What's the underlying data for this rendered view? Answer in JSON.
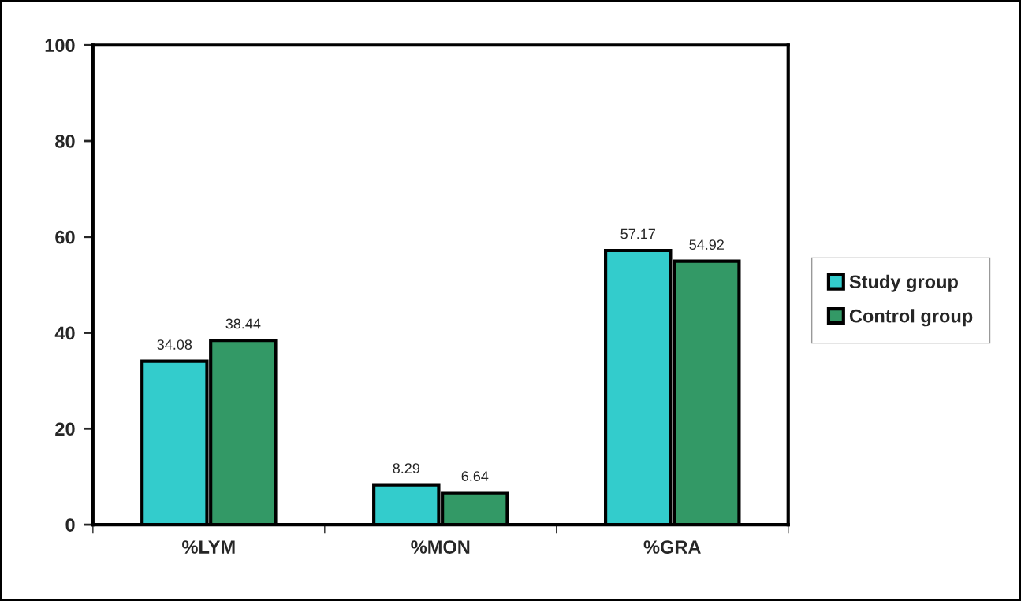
{
  "chart_data": {
    "type": "bar",
    "categories": [
      "%LYM",
      "%MON",
      "%GRA"
    ],
    "series": [
      {
        "name": "Study group",
        "color": "#33cccc",
        "values": [
          34.08,
          8.29,
          57.17
        ]
      },
      {
        "name": "Control group",
        "color": "#339966",
        "values": [
          38.44,
          6.64,
          54.92
        ]
      }
    ],
    "ylim": [
      0,
      100
    ],
    "yticks": [
      0,
      20,
      40,
      60,
      80,
      100
    ],
    "data_labels": true,
    "grid": false,
    "legend": "right"
  }
}
